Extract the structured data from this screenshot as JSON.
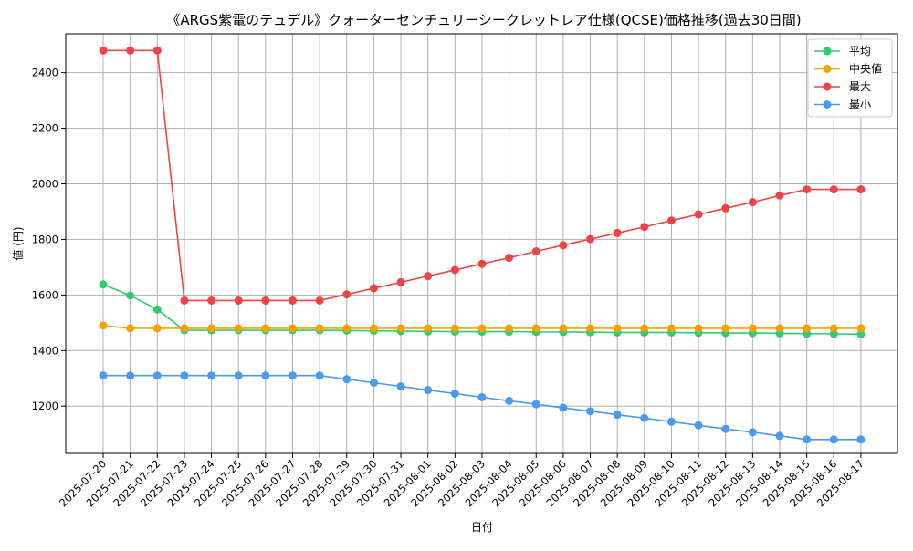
{
  "chart_data": {
    "type": "line",
    "title": "《ARGS紫電のテュデル》クォーターセンチュリーシークレットレア仕様(QCSE)価格推移(過去30日間)",
    "xlabel": "日付",
    "ylabel": "値 (円)",
    "x": [
      "2025-07-20",
      "2025-07-21",
      "2025-07-22",
      "2025-07-23",
      "2025-07-24",
      "2025-07-25",
      "2025-07-26",
      "2025-07-27",
      "2025-07-28",
      "2025-07-29",
      "2025-07-30",
      "2025-07-31",
      "2025-08-01",
      "2025-08-02",
      "2025-08-03",
      "2025-08-04",
      "2025-08-05",
      "2025-08-06",
      "2025-08-07",
      "2025-08-08",
      "2025-08-09",
      "2025-08-10",
      "2025-08-11",
      "2025-08-12",
      "2025-08-13",
      "2025-08-14",
      "2025-08-15",
      "2025-08-16",
      "2025-08-17"
    ],
    "ylim": [
      1030,
      2540
    ],
    "yticks": [
      1200,
      1400,
      1600,
      1800,
      2000,
      2200,
      2400
    ],
    "grid": true,
    "legend_position": "top-right",
    "series": [
      {
        "name": "平均",
        "color": "#2ecc71",
        "values": [
          1638,
          1598,
          1548,
          1473,
          1473,
          1473,
          1473,
          1473,
          1473,
          1472,
          1471,
          1470,
          1469,
          1468,
          1468,
          1468,
          1467,
          1467,
          1466,
          1465,
          1465,
          1465,
          1464,
          1463,
          1463,
          1462,
          1461,
          1460,
          1459
        ]
      },
      {
        "name": "中央値",
        "color": "#f5a200",
        "values": [
          1490,
          1480,
          1480,
          1480,
          1480,
          1480,
          1480,
          1480,
          1480,
          1480,
          1480,
          1480,
          1480,
          1480,
          1480,
          1480,
          1480,
          1480,
          1480,
          1480,
          1480,
          1480,
          1480,
          1480,
          1480,
          1480,
          1480,
          1480,
          1480
        ]
      },
      {
        "name": "最大",
        "color": "#ef4444",
        "values": [
          2480,
          2480,
          2480,
          1580,
          1580,
          1580,
          1580,
          1580,
          1580,
          1602,
          1624,
          1646,
          1668,
          1690,
          1712,
          1734,
          1757,
          1779,
          1801,
          1823,
          1845,
          1868,
          1890,
          1912,
          1934,
          1958,
          1980,
          1980,
          1980
        ]
      },
      {
        "name": "最小",
        "color": "#4a9bf0",
        "values": [
          1310,
          1310,
          1310,
          1310,
          1310,
          1310,
          1310,
          1310,
          1310,
          1297,
          1284,
          1271,
          1258,
          1245,
          1232,
          1219,
          1207,
          1194,
          1182,
          1169,
          1157,
          1144,
          1131,
          1118,
          1106,
          1093,
          1080,
          1080,
          1080
        ]
      }
    ]
  }
}
